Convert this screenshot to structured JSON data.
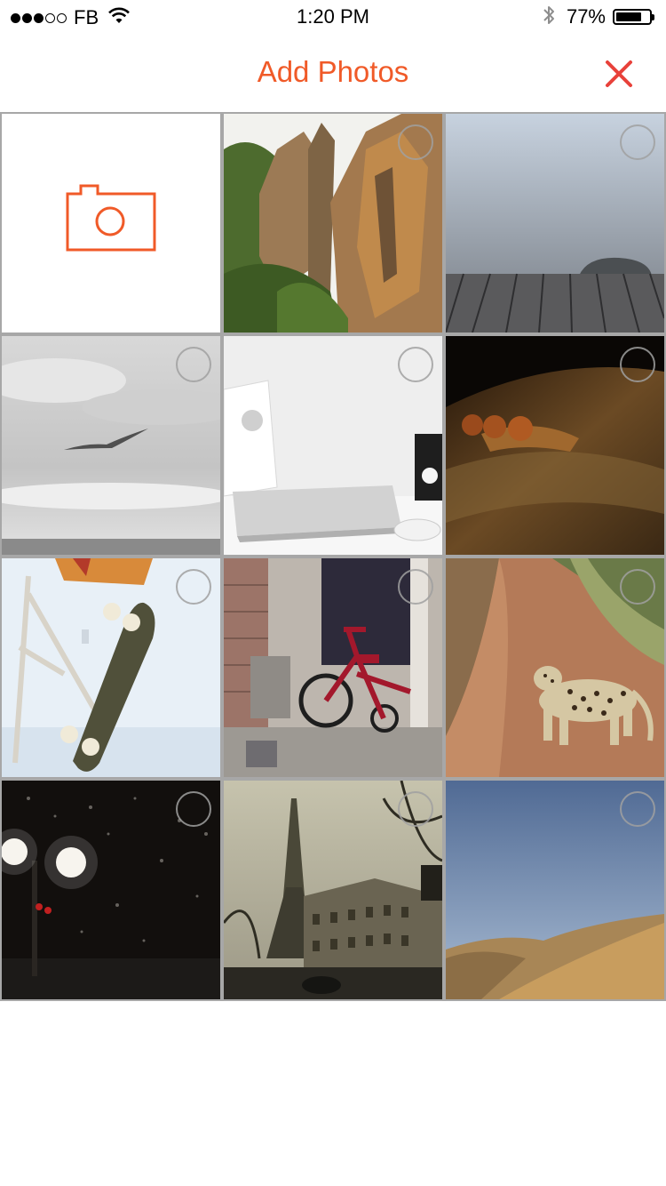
{
  "status_bar": {
    "carrier": "FB",
    "signal_bars_filled": 3,
    "signal_bars_total": 5,
    "time": "1:20 PM",
    "battery_percent": "77%",
    "battery_level": 0.77,
    "icons": [
      "signal-dots-icon",
      "wifi-icon",
      "bluetooth-icon",
      "battery-icon"
    ]
  },
  "header": {
    "title": "Add Photos",
    "close_icon": "close-icon"
  },
  "colors": {
    "accent": "#f05a28",
    "close": "#e8413a",
    "grid_gap": "#a7a7a7",
    "select_ring": "#a0a0a0"
  },
  "grid": {
    "camera_tile_icon": "camera-icon",
    "photos": [
      {
        "subject": "rock-cliffs"
      },
      {
        "subject": "wooden-pier"
      },
      {
        "subject": "bird-over-sea"
      },
      {
        "subject": "laptop-desk"
      },
      {
        "subject": "balls-on-wood"
      },
      {
        "subject": "skateboard"
      },
      {
        "subject": "tricycle"
      },
      {
        "subject": "leopard"
      },
      {
        "subject": "street-lamps-night"
      },
      {
        "subject": "eiffel-tower"
      },
      {
        "subject": "desert-dunes"
      }
    ]
  }
}
